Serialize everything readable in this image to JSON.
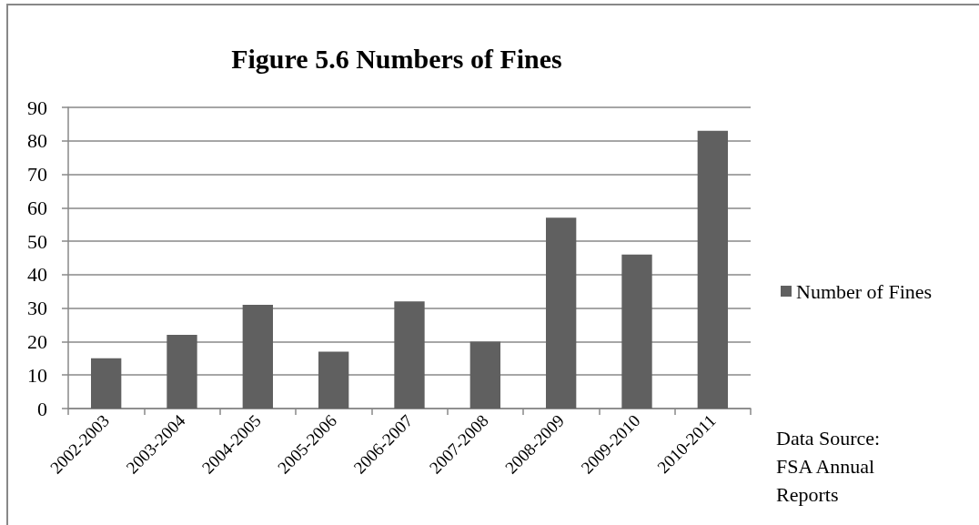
{
  "chart_data": {
    "type": "bar",
    "title": "Figure 5.6 Numbers of Fines",
    "categories": [
      "2002-2003",
      "2003-2004",
      "2004-2005",
      "2005-2006",
      "2006-2007",
      "2007-2008",
      "2008-2009",
      "2009-2010",
      "2010-2011"
    ],
    "series": [
      {
        "name": "Number of Fines",
        "color": "#606060",
        "values": [
          15,
          22,
          31,
          17,
          32,
          20,
          57,
          46,
          83
        ]
      }
    ],
    "ylim": [
      0,
      90
    ],
    "yticks": [
      0,
      10,
      20,
      30,
      40,
      50,
      60,
      70,
      80,
      90
    ],
    "grid": "y",
    "legend": "right",
    "annotations": [
      "Data Source: FSA Annual Reports"
    ]
  }
}
